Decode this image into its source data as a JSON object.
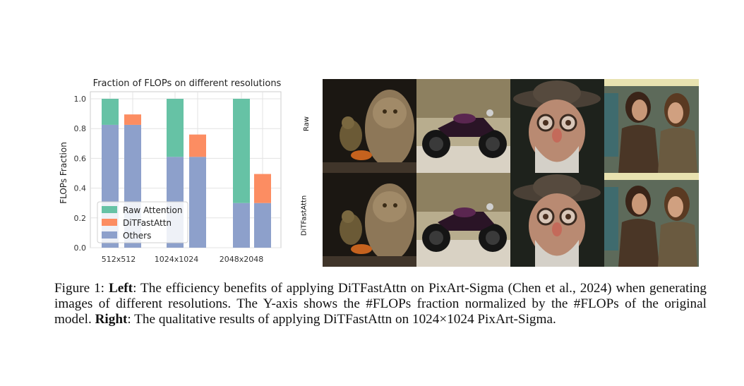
{
  "chart_data": {
    "type": "bar",
    "title": "Fraction of FLOPs on different resolutions",
    "ylabel": "FLOPs Fraction",
    "ylim": [
      0,
      1.0
    ],
    "yticks": [
      "0.0",
      "0.2",
      "0.4",
      "0.6",
      "0.8",
      "1.0"
    ],
    "groups": [
      "512x512",
      "1024x1024",
      "2048x2048"
    ],
    "bars": [
      {
        "group": "512x512",
        "others": 0.825,
        "raw_attention": 0.175,
        "ditfastattn": 0
      },
      {
        "group": "512x512",
        "others": 0.825,
        "raw_attention": 0,
        "ditfastattn": 0.07
      },
      {
        "group": "1024x1024",
        "others": 0.61,
        "raw_attention": 0.39,
        "ditfastattn": 0
      },
      {
        "group": "1024x1024",
        "others": 0.61,
        "raw_attention": 0,
        "ditfastattn": 0.15
      },
      {
        "group": "2048x2048",
        "others": 0.3,
        "raw_attention": 0.7,
        "ditfastattn": 0
      },
      {
        "group": "2048x2048",
        "others": 0.3,
        "raw_attention": 0,
        "ditfastattn": 0.195
      }
    ],
    "legend": [
      {
        "label": "Raw Attention",
        "color": "#66c2a5"
      },
      {
        "label": "DiTFastAttn",
        "color": "#fc8d62"
      },
      {
        "label": "Others",
        "color": "#8da0cb"
      }
    ],
    "legend_position": "bottom-left",
    "grid": true
  },
  "panel": {
    "row_labels": [
      "Raw",
      "DiTFastAttn"
    ]
  },
  "caption": {
    "prefix": "Figure 1: ",
    "left_bold": "Left",
    "left_text": ": The efficiency benefits of applying DiTFastAttn on PixArt-Sigma (Chen et al., 2024) when generating images of different resolutions. The Y-axis shows the #FLOPs fraction normalized by the #FLOPs of the original model. ",
    "right_bold": "Right",
    "right_text": ": The qualitative results of applying DiTFastAttn on 1024×1024 PixArt-Sigma."
  }
}
